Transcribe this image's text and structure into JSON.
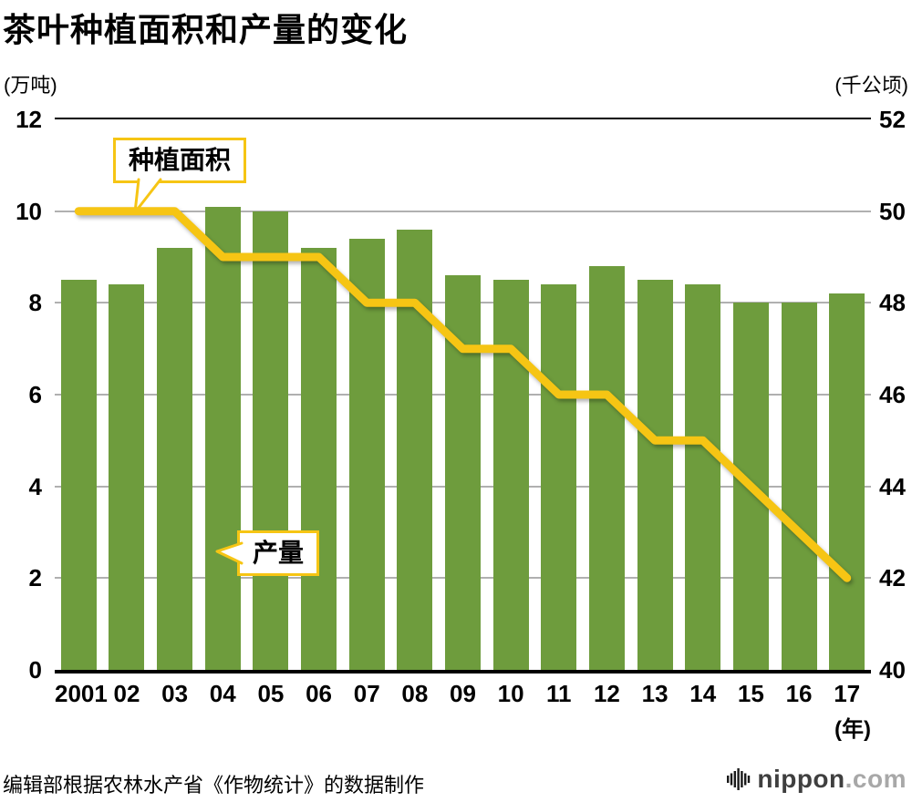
{
  "title": "茶叶种植面积和产量的变化",
  "left_axis_unit": "(万吨)",
  "right_axis_unit": "(千公顷)",
  "x_axis_unit": "(年)",
  "footer": "编辑部根据农林水产省《作物统计》的数据制作",
  "logo": {
    "name": "nippon",
    "suffix": ".com"
  },
  "callouts": {
    "area": "种植面积",
    "production": "产量"
  },
  "colors": {
    "bar": "#6e9c3d",
    "line": "#f6c514",
    "grid": "#b0b0b0",
    "axis": "#000000"
  },
  "chart_data": {
    "type": "bar+line",
    "title": "茶叶种植面积和产量的变化",
    "categories": [
      "2001",
      "02",
      "03",
      "04",
      "05",
      "06",
      "07",
      "08",
      "09",
      "10",
      "11",
      "12",
      "13",
      "14",
      "15",
      "16",
      "17"
    ],
    "series": [
      {
        "name": "产量",
        "type": "bar",
        "axis": "left",
        "values": [
          8.5,
          8.4,
          9.2,
          10.1,
          10.0,
          9.2,
          9.4,
          9.6,
          8.6,
          8.5,
          8.4,
          8.8,
          8.5,
          8.4,
          8.0,
          8.0,
          8.2
        ]
      },
      {
        "name": "种植面积",
        "type": "line",
        "axis": "right",
        "values": [
          50,
          50,
          50,
          49,
          49,
          49,
          48,
          48,
          47,
          47,
          46,
          46,
          45,
          45,
          44,
          43,
          42
        ]
      }
    ],
    "left_axis": {
      "min": 0,
      "max": 12,
      "step": 2,
      "label": "(万吨)"
    },
    "right_axis": {
      "min": 40,
      "max": 52,
      "step": 2,
      "label": "(千公顷)"
    },
    "x_axis_label": "(年)",
    "grid": true,
    "legend_position": "callouts-on-plot"
  }
}
